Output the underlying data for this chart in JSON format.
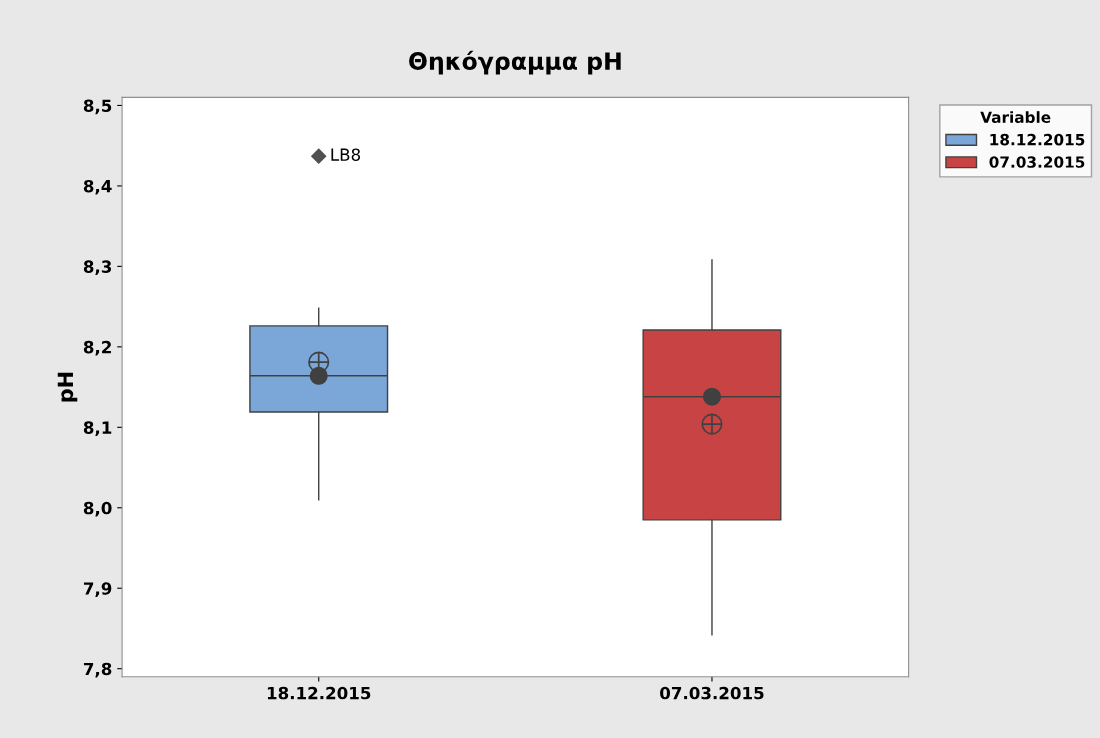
{
  "chart_data": {
    "type": "box",
    "title": "Θηκόγραμμα pH",
    "ylabel": "pH",
    "legend_title": "Variable",
    "legend": "top right",
    "categories": [
      "18.12.2015",
      "07.03.2015"
    ],
    "series": [
      {
        "name": "18.12.2015",
        "color": "#7aa6d8",
        "boxes": [
          {
            "low": 8.01,
            "q1": 8.119,
            "median": 8.164,
            "q3": 8.226,
            "high": 8.248,
            "mean": 8.181,
            "outliers": [
              8.437
            ]
          },
          null
        ]
      },
      {
        "name": "07.03.2015",
        "color": "#c84444",
        "boxes": [
          null,
          {
            "low": 7.842,
            "q1": 7.985,
            "median": 8.138,
            "q3": 8.221,
            "high": 8.308,
            "mean": 8.104
          }
        ]
      }
    ],
    "annotations": [
      "LB8"
    ],
    "ylim": [
      7.79,
      8.51
    ],
    "yticks": [
      {
        "value": 7.8,
        "label": "7,8"
      },
      {
        "value": 7.9,
        "label": "7,9"
      },
      {
        "value": 8.0,
        "label": "8,0"
      },
      {
        "value": 8.1,
        "label": "8,1"
      },
      {
        "value": 8.2,
        "label": "8,2"
      },
      {
        "value": 8.3,
        "label": "8,3"
      },
      {
        "value": 8.4,
        "label": "8,4"
      },
      {
        "value": 8.5,
        "label": "8,5"
      }
    ],
    "grid": false
  }
}
